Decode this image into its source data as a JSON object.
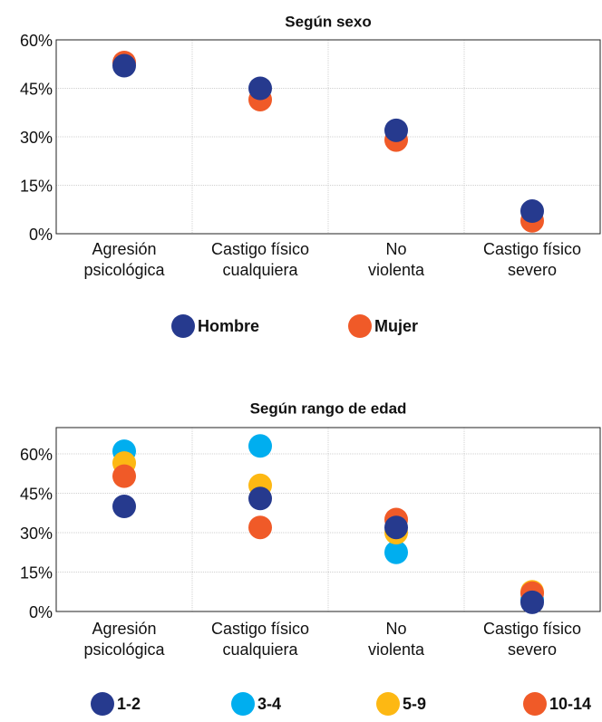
{
  "chart_data": [
    {
      "type": "dot",
      "title": "Según sexo",
      "categories": [
        [
          "Agresión",
          "psicológica"
        ],
        [
          "Castigo físico",
          "cualquiera"
        ],
        [
          "No",
          "violenta"
        ],
        [
          "Castigo físico",
          "severo"
        ]
      ],
      "series": [
        {
          "name": "Hombre",
          "color": "#263a8e",
          "values": [
            52,
            45,
            32,
            7
          ]
        },
        {
          "name": "Mujer",
          "color": "#f05a28",
          "values": [
            53,
            41.5,
            29,
            4
          ]
        }
      ],
      "ylim": [
        0,
        60
      ],
      "yticks": [
        {
          "value": 0,
          "label": "0%"
        },
        {
          "value": 15,
          "label": "15%"
        },
        {
          "value": 30,
          "label": "30%"
        },
        {
          "value": 45,
          "label": "45%"
        },
        {
          "value": 60,
          "label": "60%"
        }
      ],
      "grid": true
    },
    {
      "type": "dot",
      "title": "Según rango de edad",
      "categories": [
        [
          "Agresión",
          "psicológica"
        ],
        [
          "Castigo físico",
          "cualquiera"
        ],
        [
          "No",
          "violenta"
        ],
        [
          "Castigo físico",
          "severo"
        ]
      ],
      "series": [
        {
          "name": "1-2",
          "color": "#263a8e",
          "values": [
            40,
            43,
            32,
            3.5
          ]
        },
        {
          "name": "3-4",
          "color": "#00aeef",
          "values": [
            61,
            63,
            22.5,
            4.5
          ]
        },
        {
          "name": "5-9",
          "color": "#fdb813",
          "values": [
            56.5,
            48,
            30,
            7.5
          ]
        },
        {
          "name": "10-14",
          "color": "#f05a28",
          "values": [
            51.5,
            32,
            35,
            7
          ]
        }
      ],
      "ylim": [
        0,
        70
      ],
      "yticks": [
        {
          "value": 0,
          "label": "0%"
        },
        {
          "value": 15,
          "label": "15%"
        },
        {
          "value": 30,
          "label": "30%"
        },
        {
          "value": 45,
          "label": "45%"
        },
        {
          "value": 60,
          "label": "60%"
        }
      ],
      "grid": true
    }
  ]
}
